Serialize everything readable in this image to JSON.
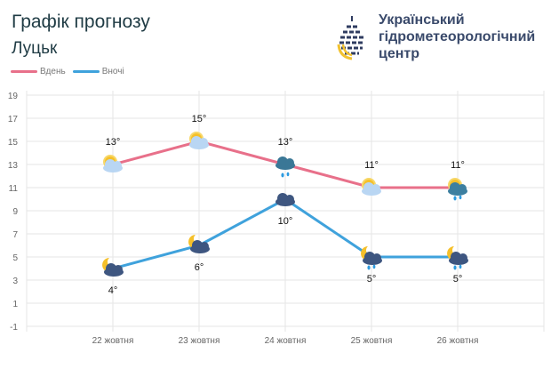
{
  "header": {
    "title": "Графік прогнозу",
    "city": "Луцьк"
  },
  "logo": {
    "org_lines": [
      "Український",
      "гідрометеорологічний",
      "центр"
    ]
  },
  "chart_data": {
    "type": "line",
    "categories": [
      "22 жовтня",
      "23 жовтня",
      "24 жовтня",
      "25 жовтня",
      "26 жовтня"
    ],
    "series": [
      {
        "name": "Вдень",
        "color": "#e8708a",
        "values": [
          13,
          15,
          13,
          11,
          11
        ],
        "labels": [
          "13°",
          "15°",
          "13°",
          "11°",
          "11°"
        ],
        "icons": [
          "sun-cloud",
          "sun-cloud",
          "rain-cloud",
          "sun-cloud",
          "sun-cloud-rain"
        ]
      },
      {
        "name": "Вночі",
        "color": "#3fa2dc",
        "values": [
          4,
          6,
          10,
          5,
          5
        ],
        "labels": [
          "4°",
          "6°",
          "10°",
          "5°",
          "5°"
        ],
        "icons": [
          "moon-cloud",
          "moon-cloud",
          "cloud",
          "moon-cloud-rain",
          "moon-cloud-rain"
        ]
      }
    ],
    "yticks": [
      -1,
      1,
      3,
      5,
      7,
      9,
      11,
      13,
      15,
      17,
      19
    ],
    "ylim": [
      -1,
      19
    ],
    "grid": true,
    "legend": "top-left"
  }
}
